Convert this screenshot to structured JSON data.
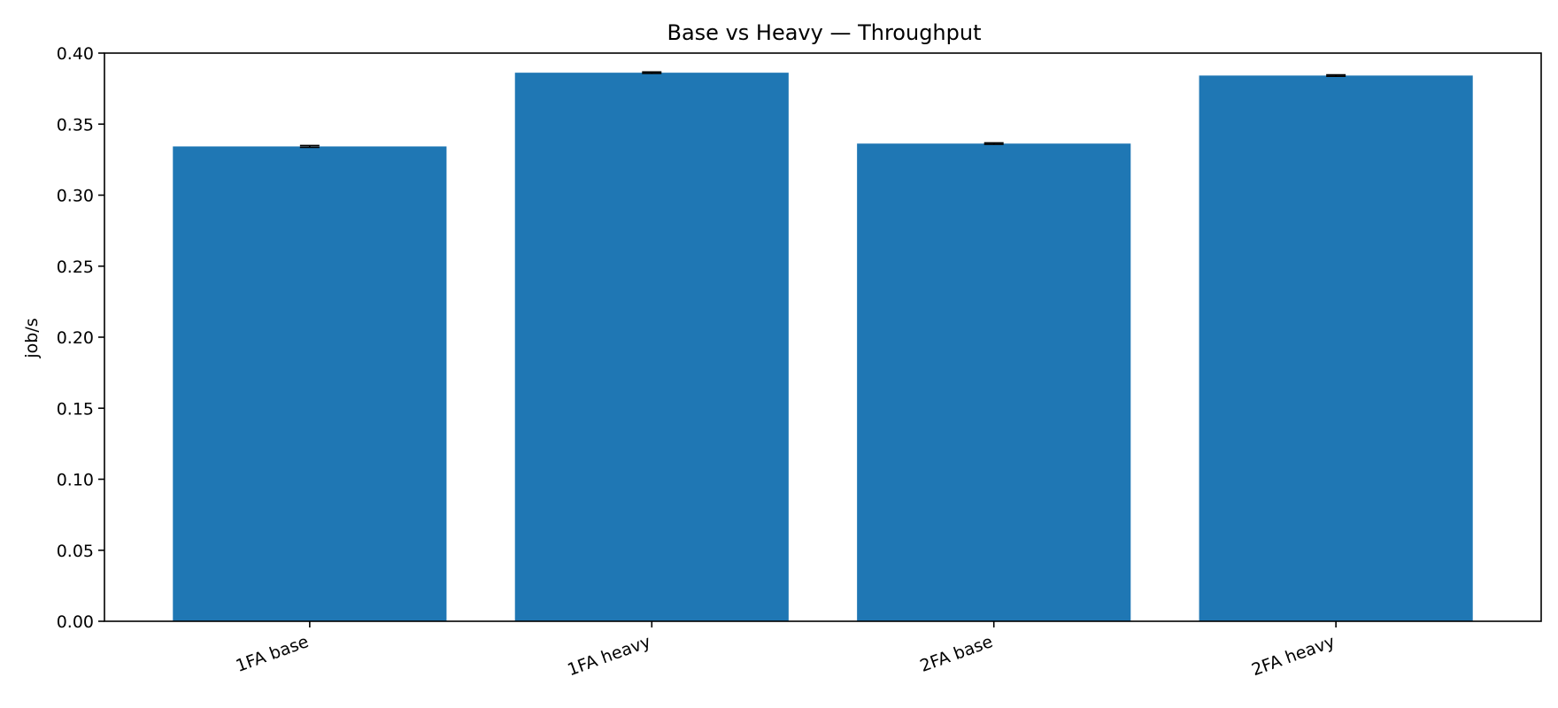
{
  "chart_data": {
    "type": "bar",
    "title": "Base vs Heavy — Throughput",
    "xlabel": "",
    "ylabel": "job/s",
    "categories": [
      "1FA base",
      "1FA heavy",
      "2FA base",
      "2FA heavy"
    ],
    "values": [
      0.3343,
      0.3862,
      0.3363,
      0.3842
    ],
    "error": [
      0.0006,
      0.0005,
      0.0005,
      0.0005
    ],
    "ylim": [
      0,
      0.4
    ],
    "yticks": [
      0.0,
      0.05,
      0.1,
      0.15,
      0.2,
      0.25,
      0.3,
      0.35,
      0.4
    ],
    "ytick_labels": [
      "0.00",
      "0.05",
      "0.10",
      "0.15",
      "0.20",
      "0.25",
      "0.30",
      "0.35",
      "0.40"
    ],
    "grid": false,
    "legend": null,
    "colors": {
      "bar": "#1f77b4",
      "error_bar": "#000000",
      "axes": "#000000"
    }
  }
}
